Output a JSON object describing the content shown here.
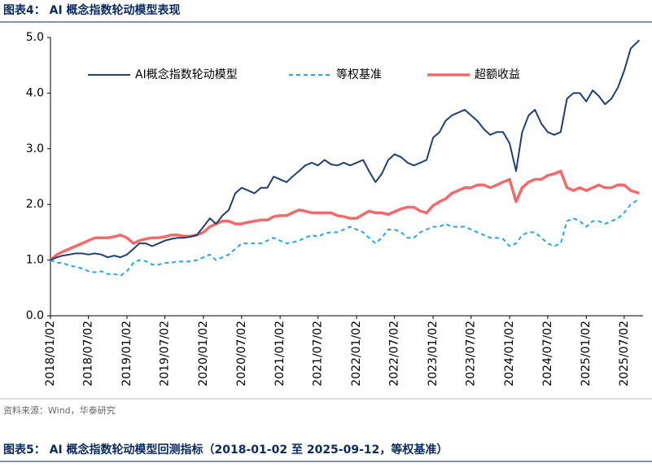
{
  "chart_data": {
    "type": "line",
    "title": "图表4：  AI 概念指数轮动模型表现",
    "x": [
      "2018/01/02",
      "2018/02/02",
      "2018/03/02",
      "2018/04/02",
      "2018/05/02",
      "2018/06/02",
      "2018/07/02",
      "2018/08/02",
      "2018/09/02",
      "2018/10/02",
      "2018/11/02",
      "2018/12/02",
      "2019/01/02",
      "2019/02/02",
      "2019/03/02",
      "2019/04/02",
      "2019/05/02",
      "2019/06/02",
      "2019/07/02",
      "2019/08/02",
      "2019/09/02",
      "2019/10/02",
      "2019/11/02",
      "2019/12/02",
      "2020/01/02",
      "2020/02/02",
      "2020/03/02",
      "2020/04/02",
      "2020/05/02",
      "2020/06/02",
      "2020/07/02",
      "2020/08/02",
      "2020/09/02",
      "2020/10/02",
      "2020/11/02",
      "2020/12/02",
      "2021/01/02",
      "2021/02/02",
      "2021/03/02",
      "2021/04/02",
      "2021/05/02",
      "2021/06/02",
      "2021/07/02",
      "2021/08/02",
      "2021/09/02",
      "2021/10/02",
      "2021/11/02",
      "2021/12/02",
      "2022/01/02",
      "2022/02/02",
      "2022/03/02",
      "2022/04/02",
      "2022/05/02",
      "2022/06/02",
      "2022/07/02",
      "2022/08/02",
      "2022/09/02",
      "2022/10/02",
      "2022/11/02",
      "2022/12/02",
      "2023/01/02",
      "2023/02/02",
      "2023/03/02",
      "2023/04/02",
      "2023/05/02",
      "2023/06/02",
      "2023/07/02",
      "2023/08/02",
      "2023/09/02",
      "2023/10/02",
      "2023/11/02",
      "2023/12/02",
      "2024/01/02",
      "2024/02/02",
      "2024/03/02",
      "2024/04/02",
      "2024/05/02",
      "2024/06/02",
      "2024/07/02",
      "2024/08/02",
      "2024/09/02",
      "2024/10/02",
      "2024/11/02",
      "2024/12/02",
      "2025/01/02",
      "2025/02/02",
      "2025/03/02",
      "2025/04/02",
      "2025/05/02",
      "2025/06/02",
      "2025/07/02",
      "2025/08/02",
      "2025/09/12"
    ],
    "series": [
      {
        "name": "AI概念指数轮动模型",
        "color": "#1f3f75",
        "style": "solid",
        "width": 2,
        "values": [
          1.0,
          1.05,
          1.08,
          1.1,
          1.12,
          1.12,
          1.1,
          1.12,
          1.1,
          1.05,
          1.08,
          1.05,
          1.1,
          1.2,
          1.3,
          1.3,
          1.25,
          1.3,
          1.35,
          1.38,
          1.4,
          1.4,
          1.42,
          1.45,
          1.6,
          1.75,
          1.65,
          1.8,
          1.9,
          2.2,
          2.3,
          2.25,
          2.2,
          2.3,
          2.3,
          2.5,
          2.45,
          2.4,
          2.5,
          2.6,
          2.7,
          2.75,
          2.7,
          2.8,
          2.72,
          2.7,
          2.75,
          2.7,
          2.75,
          2.8,
          2.6,
          2.4,
          2.55,
          2.8,
          2.9,
          2.85,
          2.75,
          2.7,
          2.75,
          2.8,
          3.2,
          3.3,
          3.5,
          3.6,
          3.65,
          3.7,
          3.6,
          3.5,
          3.35,
          3.25,
          3.3,
          3.3,
          3.1,
          2.6,
          3.3,
          3.6,
          3.7,
          3.45,
          3.3,
          3.25,
          3.3,
          3.9,
          4.0,
          4.0,
          3.85,
          4.05,
          3.95,
          3.8,
          3.9,
          4.1,
          4.4,
          4.8,
          4.95
        ]
      },
      {
        "name": "等权基准",
        "color": "#2aa6e0",
        "style": "dashed",
        "width": 2,
        "values": [
          1.0,
          0.95,
          0.95,
          0.9,
          0.88,
          0.85,
          0.8,
          0.78,
          0.8,
          0.75,
          0.75,
          0.72,
          0.8,
          0.95,
          1.0,
          0.98,
          0.92,
          0.92,
          0.95,
          0.95,
          0.98,
          0.97,
          0.98,
          1.0,
          1.05,
          1.1,
          1.0,
          1.05,
          1.1,
          1.2,
          1.3,
          1.3,
          1.3,
          1.3,
          1.35,
          1.4,
          1.35,
          1.3,
          1.32,
          1.35,
          1.4,
          1.45,
          1.42,
          1.48,
          1.5,
          1.5,
          1.55,
          1.6,
          1.55,
          1.5,
          1.4,
          1.3,
          1.4,
          1.55,
          1.55,
          1.5,
          1.4,
          1.4,
          1.5,
          1.55,
          1.6,
          1.6,
          1.65,
          1.6,
          1.6,
          1.6,
          1.55,
          1.5,
          1.45,
          1.4,
          1.4,
          1.38,
          1.25,
          1.3,
          1.45,
          1.5,
          1.5,
          1.4,
          1.3,
          1.25,
          1.3,
          1.7,
          1.75,
          1.7,
          1.6,
          1.7,
          1.7,
          1.65,
          1.7,
          1.75,
          1.85,
          2.0,
          2.1
        ]
      },
      {
        "name": "超额收益",
        "color": "#f26b6b",
        "style": "solid",
        "width": 3.5,
        "values": [
          1.0,
          1.1,
          1.15,
          1.2,
          1.25,
          1.3,
          1.35,
          1.4,
          1.4,
          1.4,
          1.42,
          1.45,
          1.4,
          1.3,
          1.35,
          1.38,
          1.4,
          1.4,
          1.42,
          1.45,
          1.45,
          1.43,
          1.43,
          1.45,
          1.5,
          1.6,
          1.65,
          1.7,
          1.7,
          1.65,
          1.65,
          1.68,
          1.7,
          1.72,
          1.72,
          1.78,
          1.8,
          1.8,
          1.85,
          1.9,
          1.88,
          1.85,
          1.85,
          1.85,
          1.85,
          1.8,
          1.78,
          1.75,
          1.75,
          1.82,
          1.88,
          1.85,
          1.85,
          1.82,
          1.87,
          1.92,
          1.95,
          1.95,
          1.88,
          1.85,
          1.98,
          2.05,
          2.1,
          2.2,
          2.25,
          2.3,
          2.3,
          2.35,
          2.35,
          2.3,
          2.35,
          2.4,
          2.45,
          2.05,
          2.3,
          2.4,
          2.45,
          2.45,
          2.52,
          2.55,
          2.6,
          2.3,
          2.25,
          2.3,
          2.25,
          2.3,
          2.35,
          2.3,
          2.3,
          2.35,
          2.35,
          2.25,
          2.2
        ]
      }
    ],
    "xlim": [
      "2018/01/02",
      "2025/09/30"
    ],
    "xticks": [
      "2018/01/02",
      "2018/07/02",
      "2019/01/02",
      "2019/07/02",
      "2020/01/02",
      "2020/07/02",
      "2021/01/02",
      "2021/07/02",
      "2022/01/02",
      "2022/07/02",
      "2023/01/02",
      "2023/07/02",
      "2024/01/02",
      "2024/07/02",
      "2025/01/02",
      "2025/07/02"
    ],
    "ylim": [
      0,
      5
    ],
    "yticks": [
      {
        "value": 0,
        "label": "0.0"
      },
      {
        "value": 1,
        "label": "1.0"
      },
      {
        "value": 2,
        "label": "2.0"
      },
      {
        "value": 3,
        "label": "3.0"
      },
      {
        "value": 4,
        "label": "4.0"
      },
      {
        "value": 5,
        "label": "5.0"
      }
    ],
    "grid": false,
    "legend": "top"
  },
  "source": "资料来源：Wind，华泰研究",
  "next_title": "图表5：  AI 概念指数轮动模型回测指标（2018-01-02 至 2025-09-12，等权基准）"
}
